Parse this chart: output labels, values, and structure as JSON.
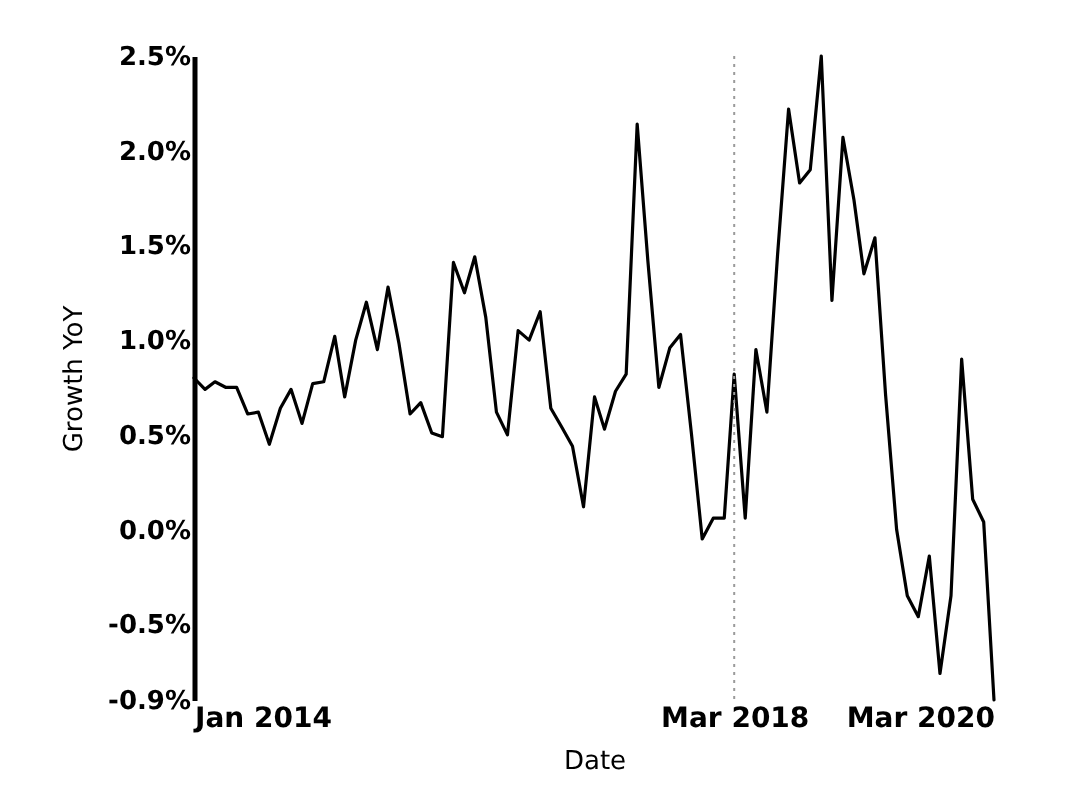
{
  "chart_data": {
    "type": "line",
    "xlabel": "Date",
    "ylabel": "Growth YoY",
    "x": [
      "2014-01",
      "2014-02",
      "2014-03",
      "2014-04",
      "2014-05",
      "2014-06",
      "2014-07",
      "2014-08",
      "2014-09",
      "2014-10",
      "2014-11",
      "2014-12",
      "2015-01",
      "2015-02",
      "2015-03",
      "2015-04",
      "2015-05",
      "2015-06",
      "2015-07",
      "2015-08",
      "2015-09",
      "2015-10",
      "2015-11",
      "2015-12",
      "2016-01",
      "2016-02",
      "2016-03",
      "2016-04",
      "2016-05",
      "2016-06",
      "2016-07",
      "2016-08",
      "2016-09",
      "2016-10",
      "2016-11",
      "2016-12",
      "2017-01",
      "2017-02",
      "2017-03",
      "2017-04",
      "2017-05",
      "2017-06",
      "2017-07",
      "2017-08",
      "2017-09",
      "2017-10",
      "2017-11",
      "2017-12",
      "2018-01",
      "2018-02",
      "2018-03",
      "2018-04",
      "2018-05",
      "2018-06",
      "2018-07",
      "2018-08",
      "2018-09",
      "2018-10",
      "2018-11",
      "2018-12",
      "2019-01",
      "2019-02",
      "2019-03",
      "2019-04",
      "2019-05",
      "2019-06",
      "2019-07",
      "2019-08",
      "2019-09",
      "2019-10",
      "2019-11",
      "2019-12",
      "2020-01",
      "2020-02",
      "2020-03"
    ],
    "series": [
      {
        "color": "#000000",
        "values": [
          0.8,
          0.74,
          0.78,
          0.75,
          0.75,
          0.61,
          0.62,
          0.45,
          0.64,
          0.74,
          0.56,
          0.77,
          0.78,
          1.02,
          0.7,
          1.0,
          1.2,
          0.95,
          1.28,
          0.98,
          0.61,
          0.67,
          0.51,
          0.49,
          1.41,
          1.25,
          1.44,
          1.12,
          0.62,
          0.5,
          1.05,
          1.0,
          1.15,
          0.64,
          0.54,
          0.44,
          0.12,
          0.7,
          0.53,
          0.73,
          0.82,
          2.14,
          1.42,
          0.75,
          0.96,
          1.03,
          0.5,
          -0.05,
          0.06,
          0.06,
          0.82,
          0.06,
          0.95,
          0.62,
          1.45,
          2.22,
          1.83,
          1.9,
          2.5,
          1.21,
          2.07,
          1.74,
          1.35,
          1.54,
          0.71,
          0.0,
          -0.35,
          -0.46,
          -0.14,
          -0.76,
          -0.35,
          0.9,
          0.16,
          0.04,
          -0.9
        ]
      }
    ],
    "xlim": [
      "2014-01",
      "2020-03"
    ],
    "xticks": [
      {
        "value": "2014-01",
        "label": "Jan 2014"
      },
      {
        "value": "2018-03",
        "label": "Mar 2018"
      },
      {
        "value": "2020-03",
        "label": "Mar 2020"
      }
    ],
    "ylim": [
      -0.9,
      2.5
    ],
    "yticks": [
      {
        "value": -0.9,
        "label": "-0.9%"
      },
      {
        "value": -0.5,
        "label": "-0.5%"
      },
      {
        "value": 0,
        "label": "0.0%"
      },
      {
        "value": 0.5,
        "label": "0.5%"
      },
      {
        "value": 1,
        "label": "1.0%"
      },
      {
        "value": 1.5,
        "label": "1.5%"
      },
      {
        "value": 2,
        "label": "2.0%"
      },
      {
        "value": 2.5,
        "label": "2.5%"
      }
    ],
    "ref_lines": [
      {
        "axis": "x",
        "value": "2018-03",
        "color": "#9a9a9a",
        "line_style": "dotted"
      }
    ],
    "grid": false,
    "marker": "none",
    "line_style": "solid"
  }
}
